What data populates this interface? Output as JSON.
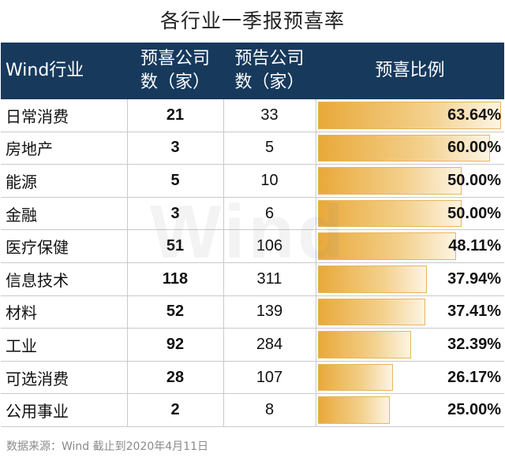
{
  "title": "各行业一季报预喜率",
  "watermark": "Wind",
  "headers": [
    "Wind行业",
    "预喜公司\n数（家）",
    "预告公司\n数（家）",
    "预喜比例"
  ],
  "source": "数据来源：Wind 截止到2020年4月11日",
  "chart_data": {
    "type": "table",
    "columns": [
      "Wind行业",
      "预喜公司数（家）",
      "预告公司数（家）",
      "预喜比例"
    ],
    "rows": [
      {
        "industry": "日常消费",
        "positive": 21,
        "total": 33,
        "ratio": 63.64,
        "label": "63.64%"
      },
      {
        "industry": "房地产",
        "positive": 3,
        "total": 5,
        "ratio": 60.0,
        "label": "60.00%"
      },
      {
        "industry": "能源",
        "positive": 5,
        "total": 10,
        "ratio": 50.0,
        "label": "50.00%"
      },
      {
        "industry": "金融",
        "positive": 3,
        "total": 6,
        "ratio": 50.0,
        "label": "50.00%"
      },
      {
        "industry": "医疗保健",
        "positive": 51,
        "total": 106,
        "ratio": 48.11,
        "label": "48.11%"
      },
      {
        "industry": "信息技术",
        "positive": 118,
        "total": 311,
        "ratio": 37.94,
        "label": "37.94%"
      },
      {
        "industry": "材料",
        "positive": 52,
        "total": 139,
        "ratio": 37.41,
        "label": "37.41%"
      },
      {
        "industry": "工业",
        "positive": 92,
        "total": 284,
        "ratio": 32.39,
        "label": "32.39%"
      },
      {
        "industry": "可选消费",
        "positive": 28,
        "total": 107,
        "ratio": 26.17,
        "label": "26.17%"
      },
      {
        "industry": "公用事业",
        "positive": 2,
        "total": 8,
        "ratio": 25.0,
        "label": "25.00%"
      }
    ],
    "bar_max": 63.64
  },
  "colors": {
    "header_bg": "#17395c",
    "bar": "#e9a93a"
  }
}
